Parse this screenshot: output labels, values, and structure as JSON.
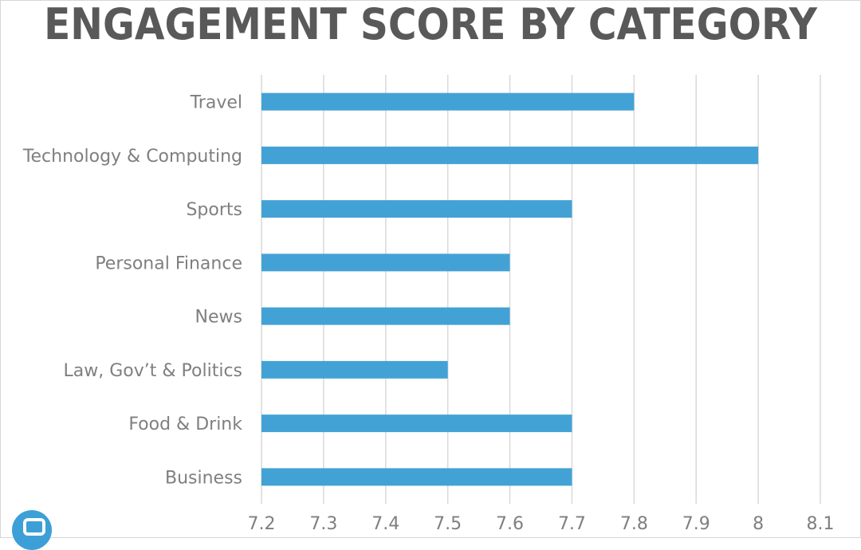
{
  "chart_data": {
    "type": "bar",
    "orientation": "horizontal",
    "title": "ENGAGEMENT SCORE BY CATEGORY",
    "categories": [
      "Travel",
      "Technology & Computing",
      "Sports",
      "Personal Finance",
      "News",
      "Law, Gov’t & Politics",
      "Food & Drink",
      "Business"
    ],
    "values": [
      7.8,
      8.0,
      7.7,
      7.6,
      7.6,
      7.5,
      7.7,
      7.7
    ],
    "xlim": [
      7.2,
      8.1
    ],
    "xticks": [
      "7.2",
      "7.3",
      "7.4",
      "7.5",
      "7.6",
      "7.7",
      "7.8",
      "7.9",
      "8",
      "8.1"
    ],
    "grid": true,
    "bar_color": "#43a2d5",
    "grid_color": "#d9d9d9",
    "text_color": "#7f7f7f"
  },
  "logo": {
    "icon": "brand-logo-icon",
    "color": "#3d9fd7"
  }
}
